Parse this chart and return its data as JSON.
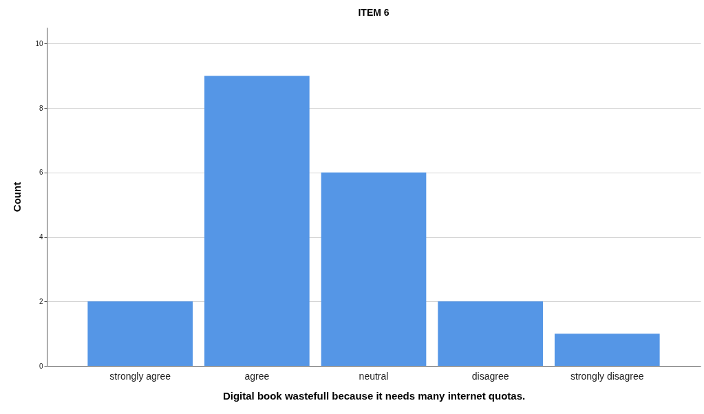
{
  "chart_data": {
    "type": "bar",
    "title": "ITEM 6",
    "xlabel": "Digital book wastefull because it needs many internet quotas.",
    "ylabel": "Count",
    "categories": [
      "strongly agree",
      "agree",
      "neutral",
      "disagree",
      "strongly disagree"
    ],
    "values": [
      2,
      9,
      6,
      2,
      1
    ],
    "color": "#5596e6",
    "ylim": [
      0,
      10.5
    ],
    "yticks": [
      0,
      2,
      4,
      6,
      8,
      10
    ],
    "grid": "y"
  }
}
